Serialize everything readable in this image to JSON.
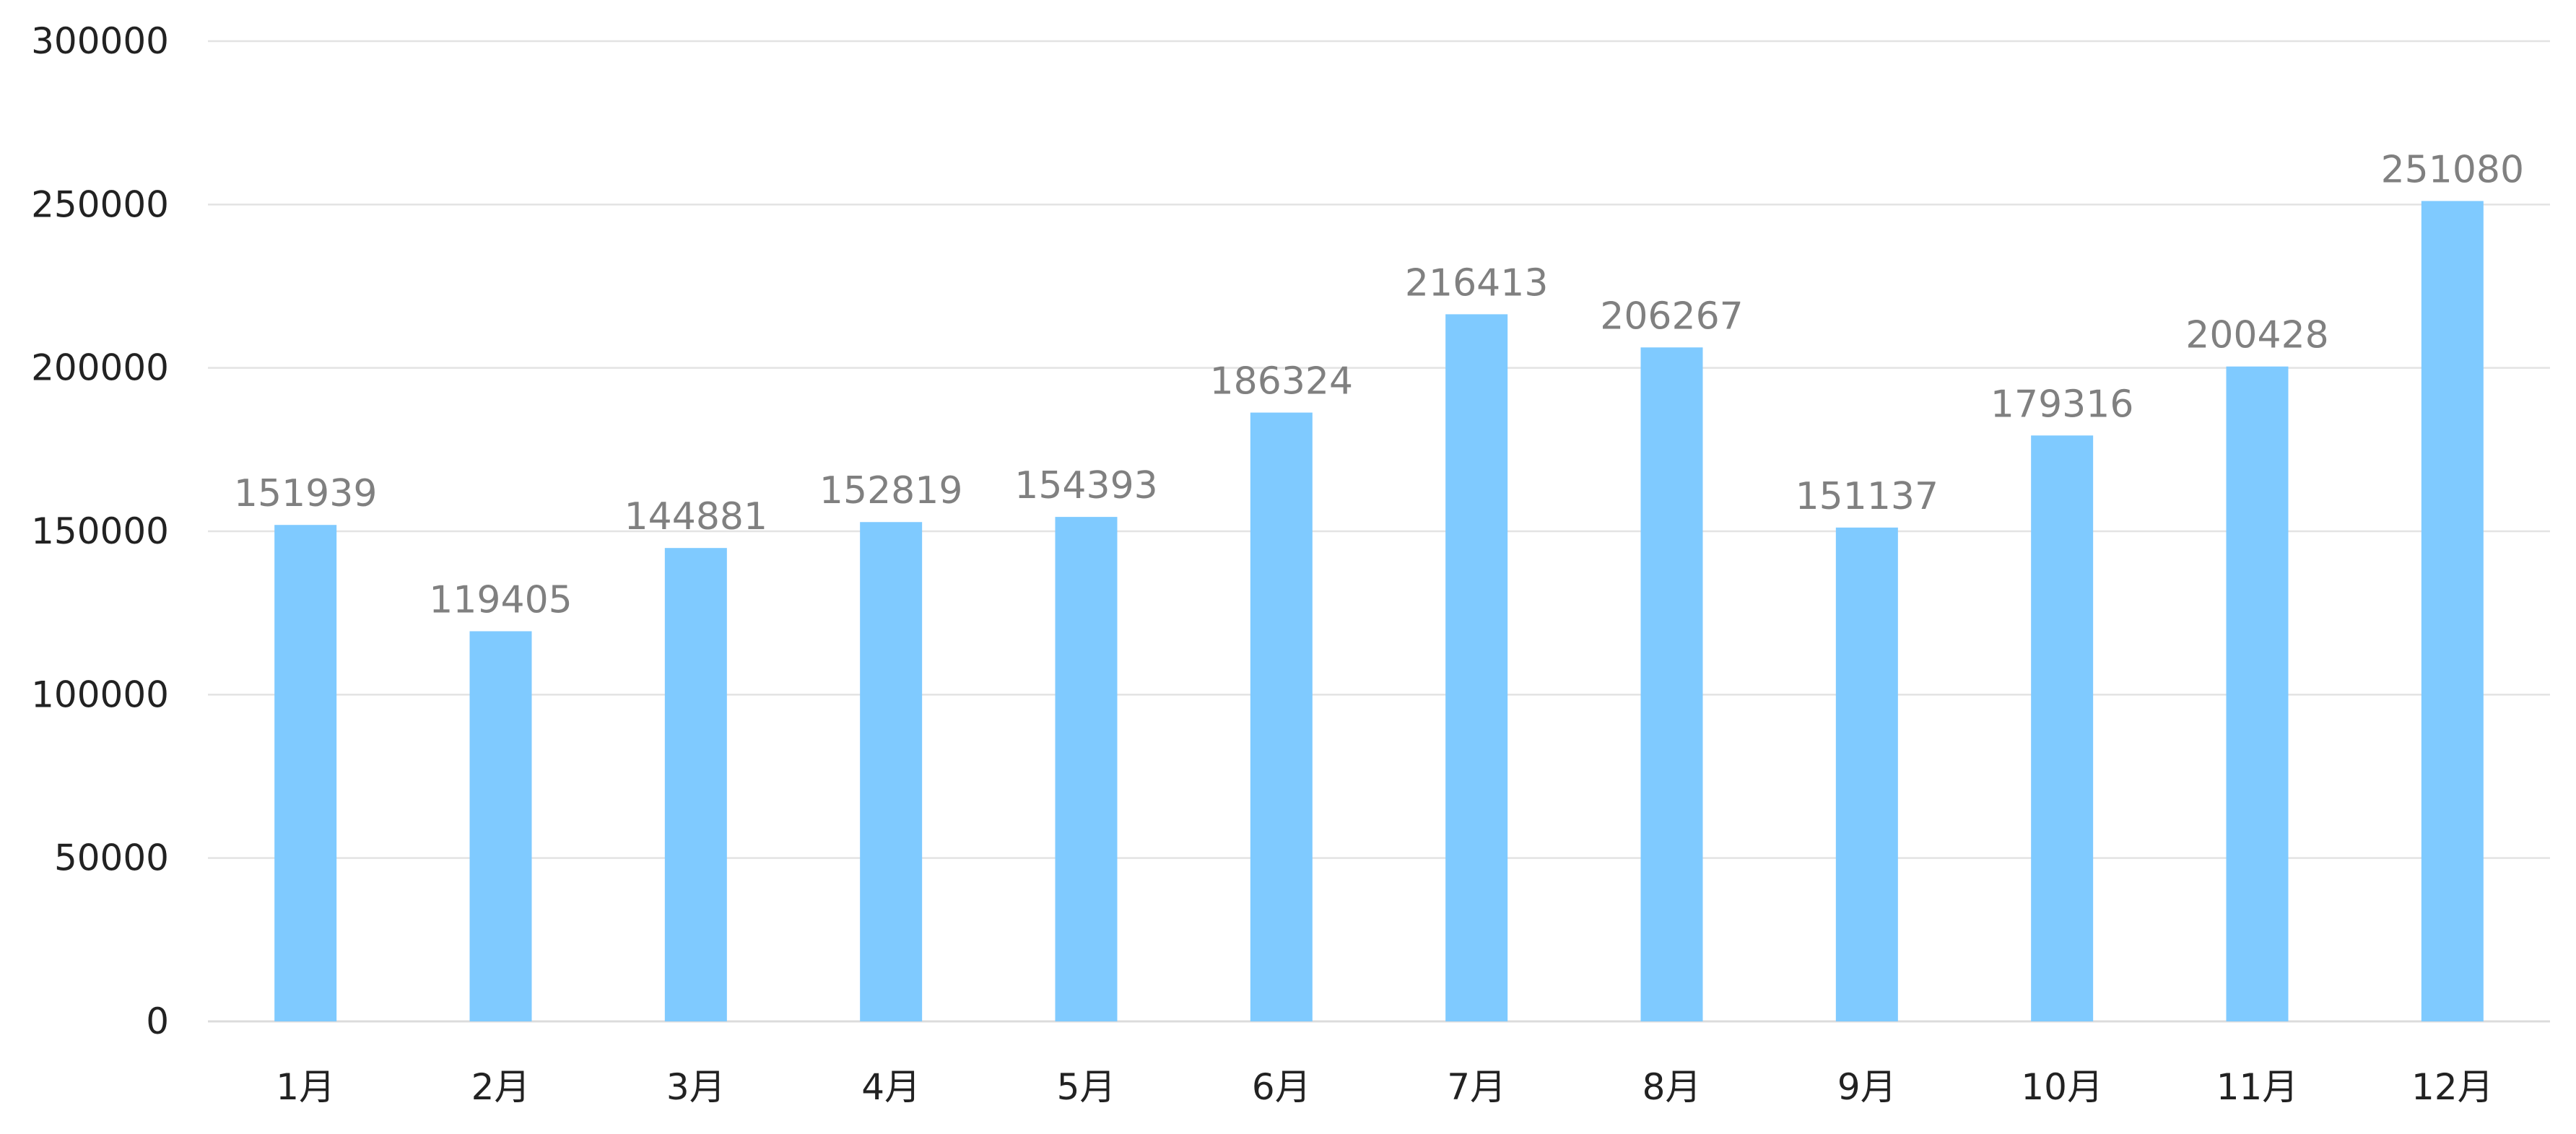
{
  "chart_data": {
    "type": "bar",
    "categories": [
      "1月",
      "2月",
      "3月",
      "4月",
      "5月",
      "6月",
      "7月",
      "8月",
      "9月",
      "10月",
      "11月",
      "12月"
    ],
    "values": [
      151939,
      119405,
      144881,
      152819,
      154393,
      186324,
      216413,
      206267,
      151137,
      179316,
      200428,
      251080
    ],
    "title": "",
    "xlabel": "",
    "ylabel": "",
    "ylim": [
      0,
      300000
    ],
    "yticks": [
      0,
      50000,
      100000,
      150000,
      200000,
      250000,
      300000
    ],
    "grid": true,
    "data_labels": true,
    "colors": {
      "bar": "#7fcaff",
      "grid": "#e3e3e3",
      "tick_text": "#222222",
      "data_label": "#808080"
    }
  }
}
